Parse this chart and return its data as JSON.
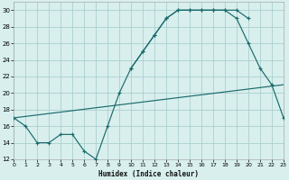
{
  "xlabel": "Humidex (Indice chaleur)",
  "bg_color": "#d8efee",
  "grid_color": "#aacfce",
  "line_color": "#1a6b6b",
  "xlim": [
    0,
    23
  ],
  "ylim": [
    12,
    31
  ],
  "xticks": [
    0,
    1,
    2,
    3,
    4,
    5,
    6,
    7,
    8,
    9,
    10,
    11,
    12,
    13,
    14,
    15,
    16,
    17,
    18,
    19,
    20,
    21,
    22,
    23
  ],
  "yticks": [
    12,
    14,
    16,
    18,
    20,
    22,
    24,
    26,
    28,
    30
  ],
  "line1_x": [
    0,
    1,
    2,
    3,
    4,
    5,
    6,
    7,
    8,
    9,
    10,
    11,
    12,
    13,
    14,
    15,
    16,
    17,
    18,
    19,
    20
  ],
  "line1_y": [
    17,
    16,
    14,
    14,
    15,
    15,
    13,
    12,
    16,
    20,
    23,
    25,
    27,
    29,
    30,
    30,
    30,
    30,
    30,
    30,
    29
  ],
  "line2_x": [
    10,
    11,
    12,
    13,
    14,
    15,
    16,
    17,
    18,
    19,
    20,
    21,
    22,
    23
  ],
  "line2_y": [
    23,
    25,
    27,
    29,
    30,
    30,
    30,
    30,
    30,
    29,
    26,
    23,
    21,
    17
  ],
  "line3_x": [
    0,
    23
  ],
  "line3_y": [
    17,
    21
  ]
}
